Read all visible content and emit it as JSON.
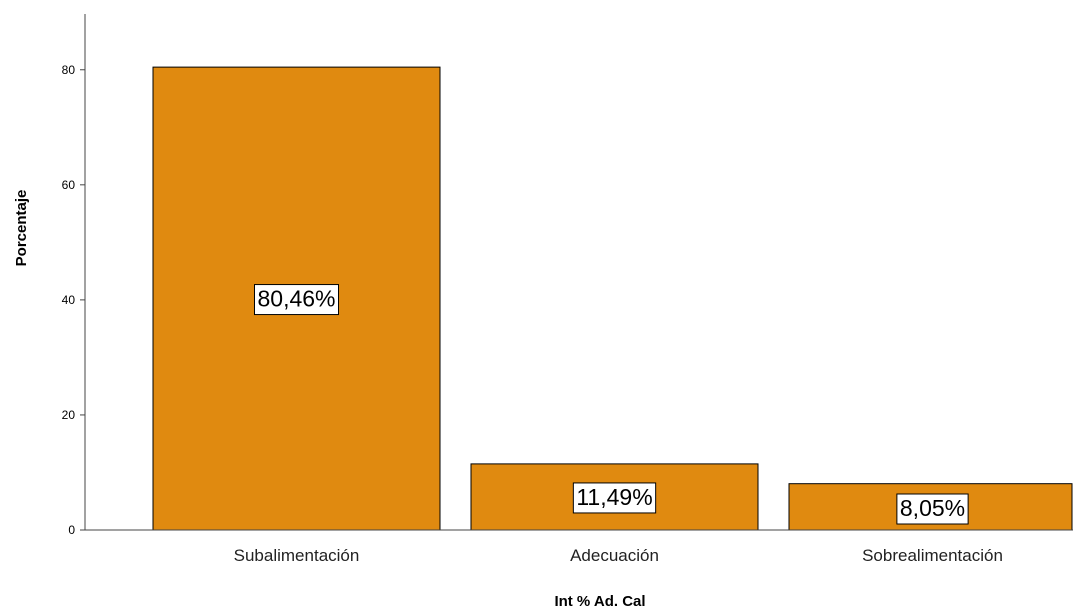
{
  "chart_data": {
    "type": "bar",
    "categories": [
      "Subalimentación",
      "Adecuación",
      "Sobrealimentación"
    ],
    "values": [
      80.46,
      11.49,
      8.05
    ],
    "data_labels": [
      "80,46%",
      "11,49%",
      "8,05%"
    ],
    "title": "",
    "xlabel": "Int % Ad. Cal",
    "ylabel": "Porcentaje",
    "ylim": [
      0,
      88
    ],
    "yticks": [
      0,
      20,
      40,
      60,
      80
    ],
    "ytick_labels": [
      "0",
      "20",
      "40",
      "60",
      "80"
    ],
    "grid": false,
    "bar_color": "#E08A10",
    "bar_edge_color": "#000000"
  }
}
